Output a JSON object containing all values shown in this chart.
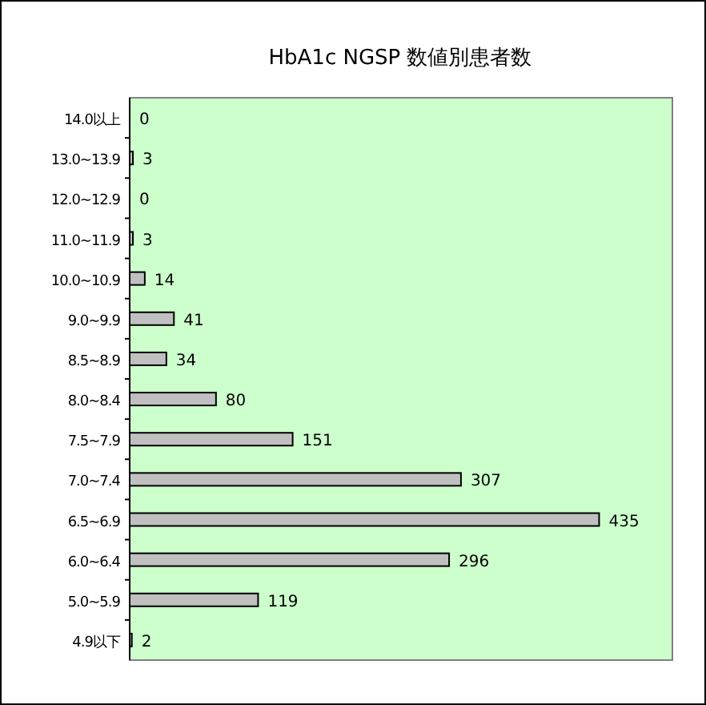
{
  "chart_data": {
    "type": "bar",
    "orientation": "horizontal",
    "title": "HbA1c NGSP 数値別患者数",
    "categories": [
      "14.0以上",
      "13.0~13.9",
      "12.0~12.9",
      "11.0~11.9",
      "10.0~10.9",
      "9.0~9.9",
      "8.5~8.9",
      "8.0~8.4",
      "7.5~7.9",
      "7.0~7.4",
      "6.5~6.9",
      "6.0~6.4",
      "5.0~5.9",
      "4.9以下"
    ],
    "values": [
      0,
      3,
      0,
      3,
      14,
      41,
      34,
      80,
      151,
      307,
      435,
      296,
      119,
      2
    ],
    "color": "#c0c0c0",
    "data_labels": true
  }
}
